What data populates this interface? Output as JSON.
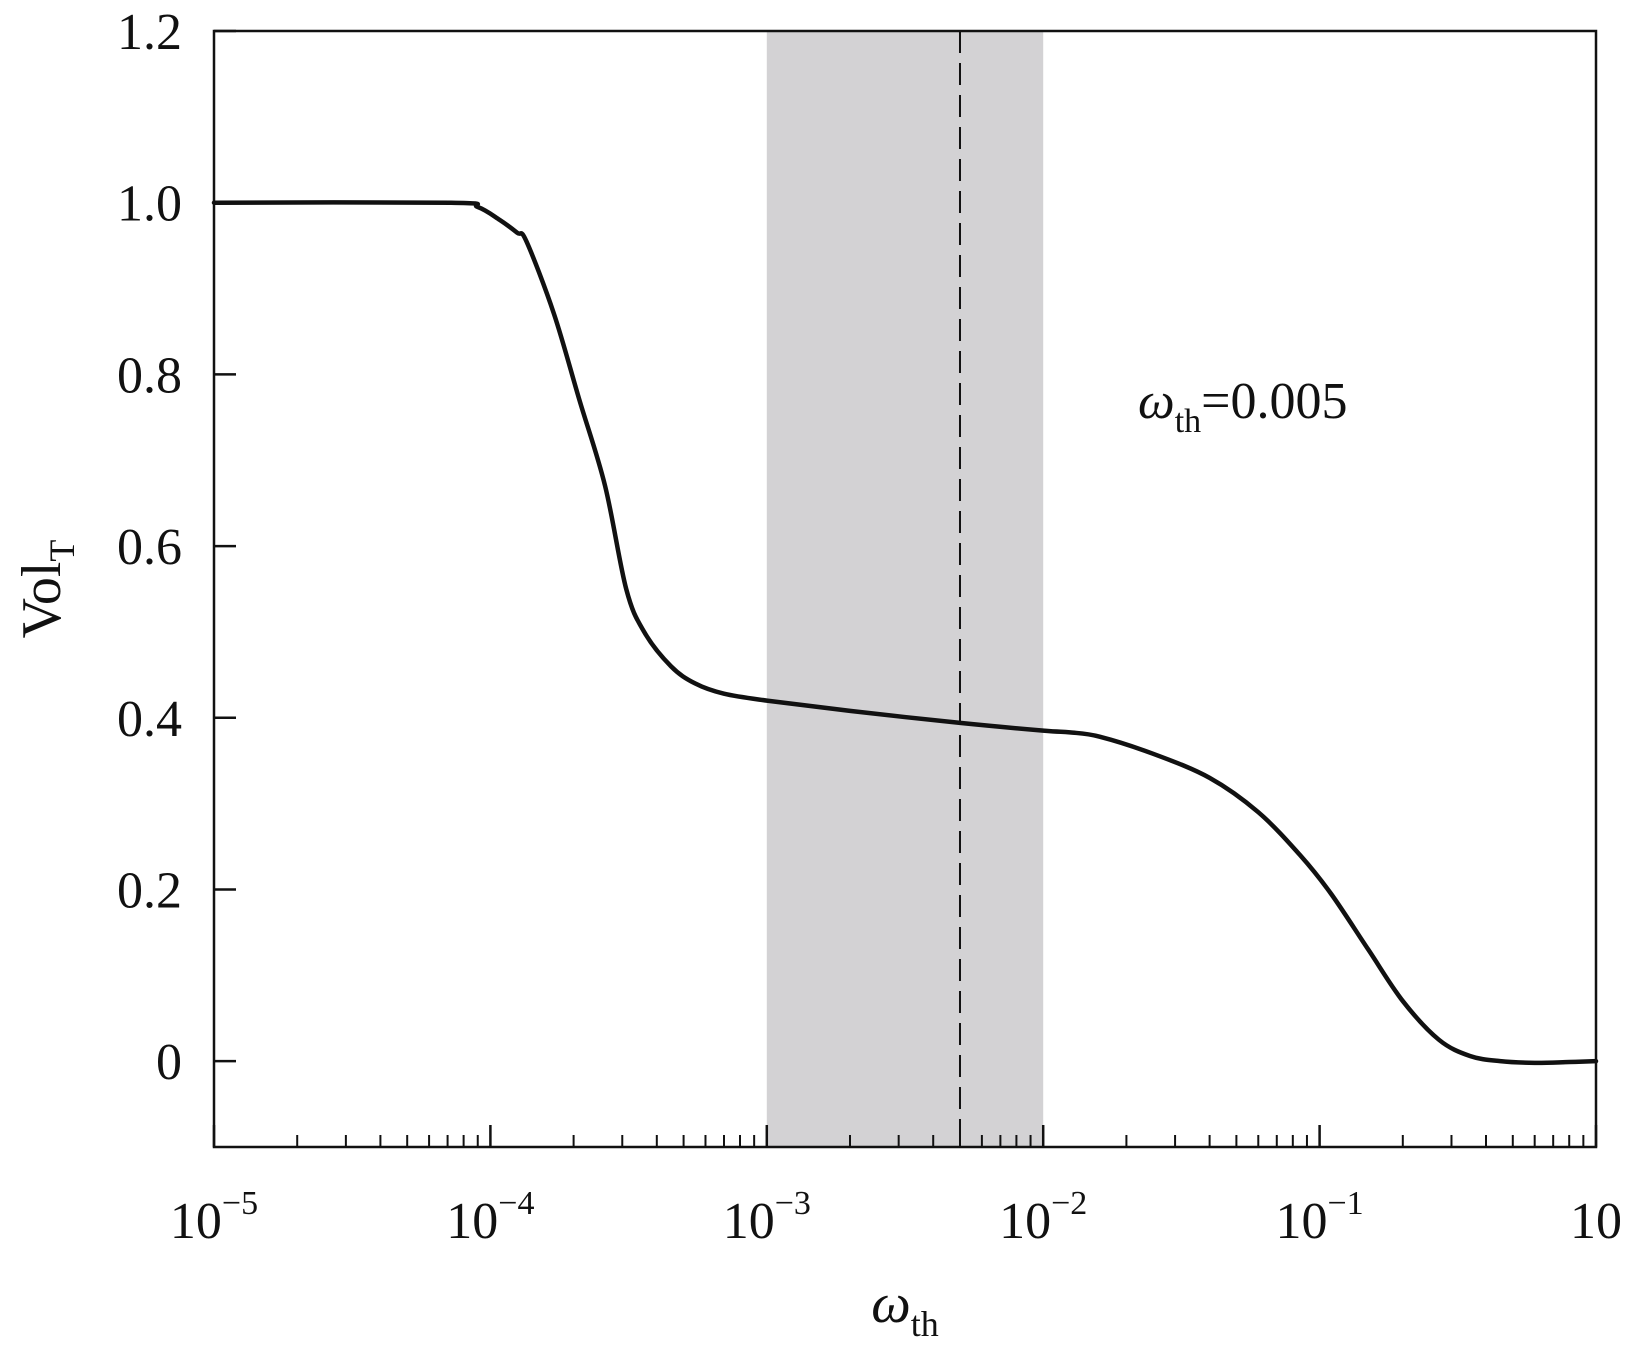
{
  "chart_data": {
    "type": "line",
    "xscale": "log",
    "xlim": [
      1e-05,
      1
    ],
    "ylim": [
      -0.1,
      1.2
    ],
    "x_ticks": [
      {
        "value": 1e-05,
        "base": "10",
        "exp": "−5"
      },
      {
        "value": 0.0001,
        "base": "10",
        "exp": "−4"
      },
      {
        "value": 0.001,
        "base": "10",
        "exp": "−3"
      },
      {
        "value": 0.01,
        "base": "10",
        "exp": "−2"
      },
      {
        "value": 0.1,
        "base": "10",
        "exp": "−1"
      },
      {
        "value": 1,
        "base": "10",
        "exp": ""
      }
    ],
    "y_ticks": [
      {
        "value": 0,
        "label": "0"
      },
      {
        "value": 0.2,
        "label": "0.2"
      },
      {
        "value": 0.4,
        "label": "0.4"
      },
      {
        "value": 0.6,
        "label": "0.6"
      },
      {
        "value": 0.8,
        "label": "0.8"
      },
      {
        "value": 1.0,
        "label": "1.0"
      },
      {
        "value": 1.2,
        "label": "1.2"
      }
    ],
    "xlabel": {
      "main": "ω",
      "sub": "th"
    },
    "ylabel": {
      "main": "Vol",
      "sub": "T"
    },
    "shaded_region": {
      "x_start": 0.001,
      "x_end": 0.01,
      "color": "#d3d2d4"
    },
    "reference_line": {
      "x": 0.005,
      "style": "dashed"
    },
    "annotation": {
      "symbol": "ω",
      "sub": "th",
      "text": "=0.005"
    },
    "series": [
      {
        "color": "#111111",
        "points": [
          [
            1e-05,
            1.0
          ],
          [
            7.2e-05,
            1.0
          ],
          [
            9e-05,
            0.995
          ],
          [
            0.000108,
            0.98
          ],
          [
            0.000125,
            0.965
          ],
          [
            0.000135,
            0.955
          ],
          [
            0.00017,
            0.87
          ],
          [
            0.00021,
            0.77
          ],
          [
            0.00026,
            0.67
          ],
          [
            0.00031,
            0.55
          ],
          [
            0.00036,
            0.5
          ],
          [
            0.00045,
            0.46
          ],
          [
            0.00055,
            0.44
          ],
          [
            0.0007,
            0.428
          ],
          [
            0.001,
            0.42
          ],
          [
            0.002,
            0.408
          ],
          [
            0.005,
            0.394
          ],
          [
            0.01,
            0.385
          ],
          [
            0.0125,
            0.383
          ],
          [
            0.016,
            0.378
          ],
          [
            0.025,
            0.358
          ],
          [
            0.04,
            0.33
          ],
          [
            0.06,
            0.29
          ],
          [
            0.085,
            0.24
          ],
          [
            0.11,
            0.195
          ],
          [
            0.15,
            0.13
          ],
          [
            0.2,
            0.07
          ],
          [
            0.27,
            0.025
          ],
          [
            0.35,
            0.006
          ],
          [
            0.45,
            0.0
          ],
          [
            0.6,
            -0.002
          ],
          [
            0.8,
            -0.001
          ],
          [
            1.0,
            0.0
          ]
        ]
      }
    ]
  }
}
